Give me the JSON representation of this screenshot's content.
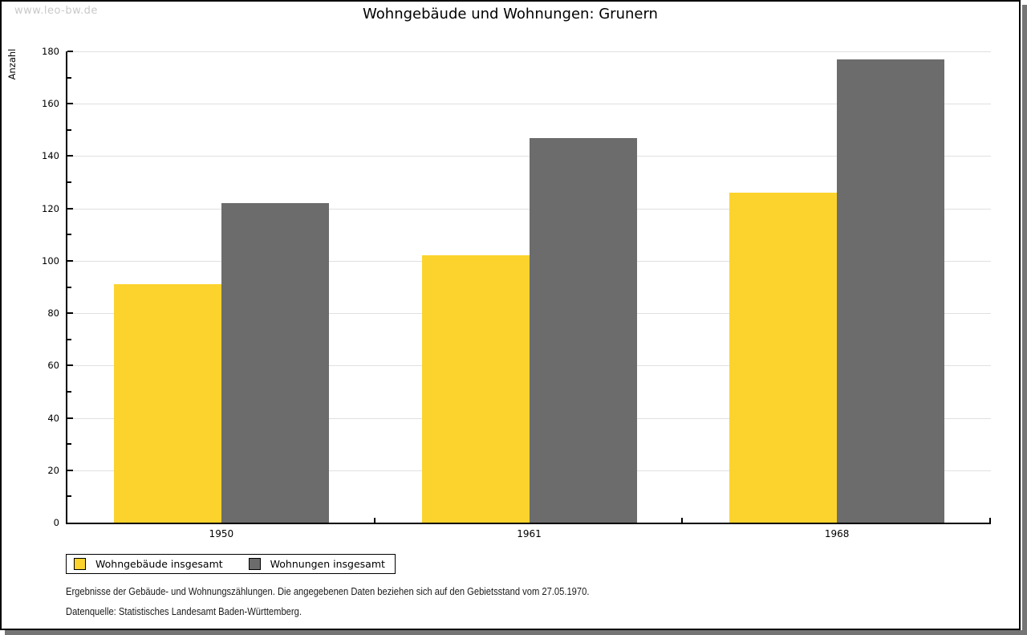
{
  "watermark": "www.leo-bw.de",
  "header": {
    "title": "Wohngebäude und Wohnungen: Grunern"
  },
  "chart_data": {
    "type": "bar",
    "title": "Wohngebäude und Wohnungen: Grunern",
    "ylabel": "Anzahl",
    "xlabel": "",
    "ylim": [
      0,
      180
    ],
    "ytick_step": 20,
    "grid": true,
    "legend_position": "bottom-left",
    "categories": [
      "1950",
      "1961",
      "1968"
    ],
    "series": [
      {
        "name": "Wohngebäude insgesamt",
        "values": [
          91,
          102,
          126
        ],
        "color": "#FCD32D"
      },
      {
        "name": "Wohnungen insgesamt",
        "values": [
          122,
          147,
          177
        ],
        "color": "#6C6C6C"
      }
    ],
    "colors": {
      "grid": "#E0E0E0",
      "axis": "#000000"
    }
  },
  "footer": {
    "note": "Ergebnisse der Gebäude- und Wohnungszählungen. Die angegebenen Daten beziehen sich auf den Gebietsstand vom 27.05.1970.",
    "source": "Datenquelle: Statistisches Landesamt Baden-Württemberg."
  }
}
